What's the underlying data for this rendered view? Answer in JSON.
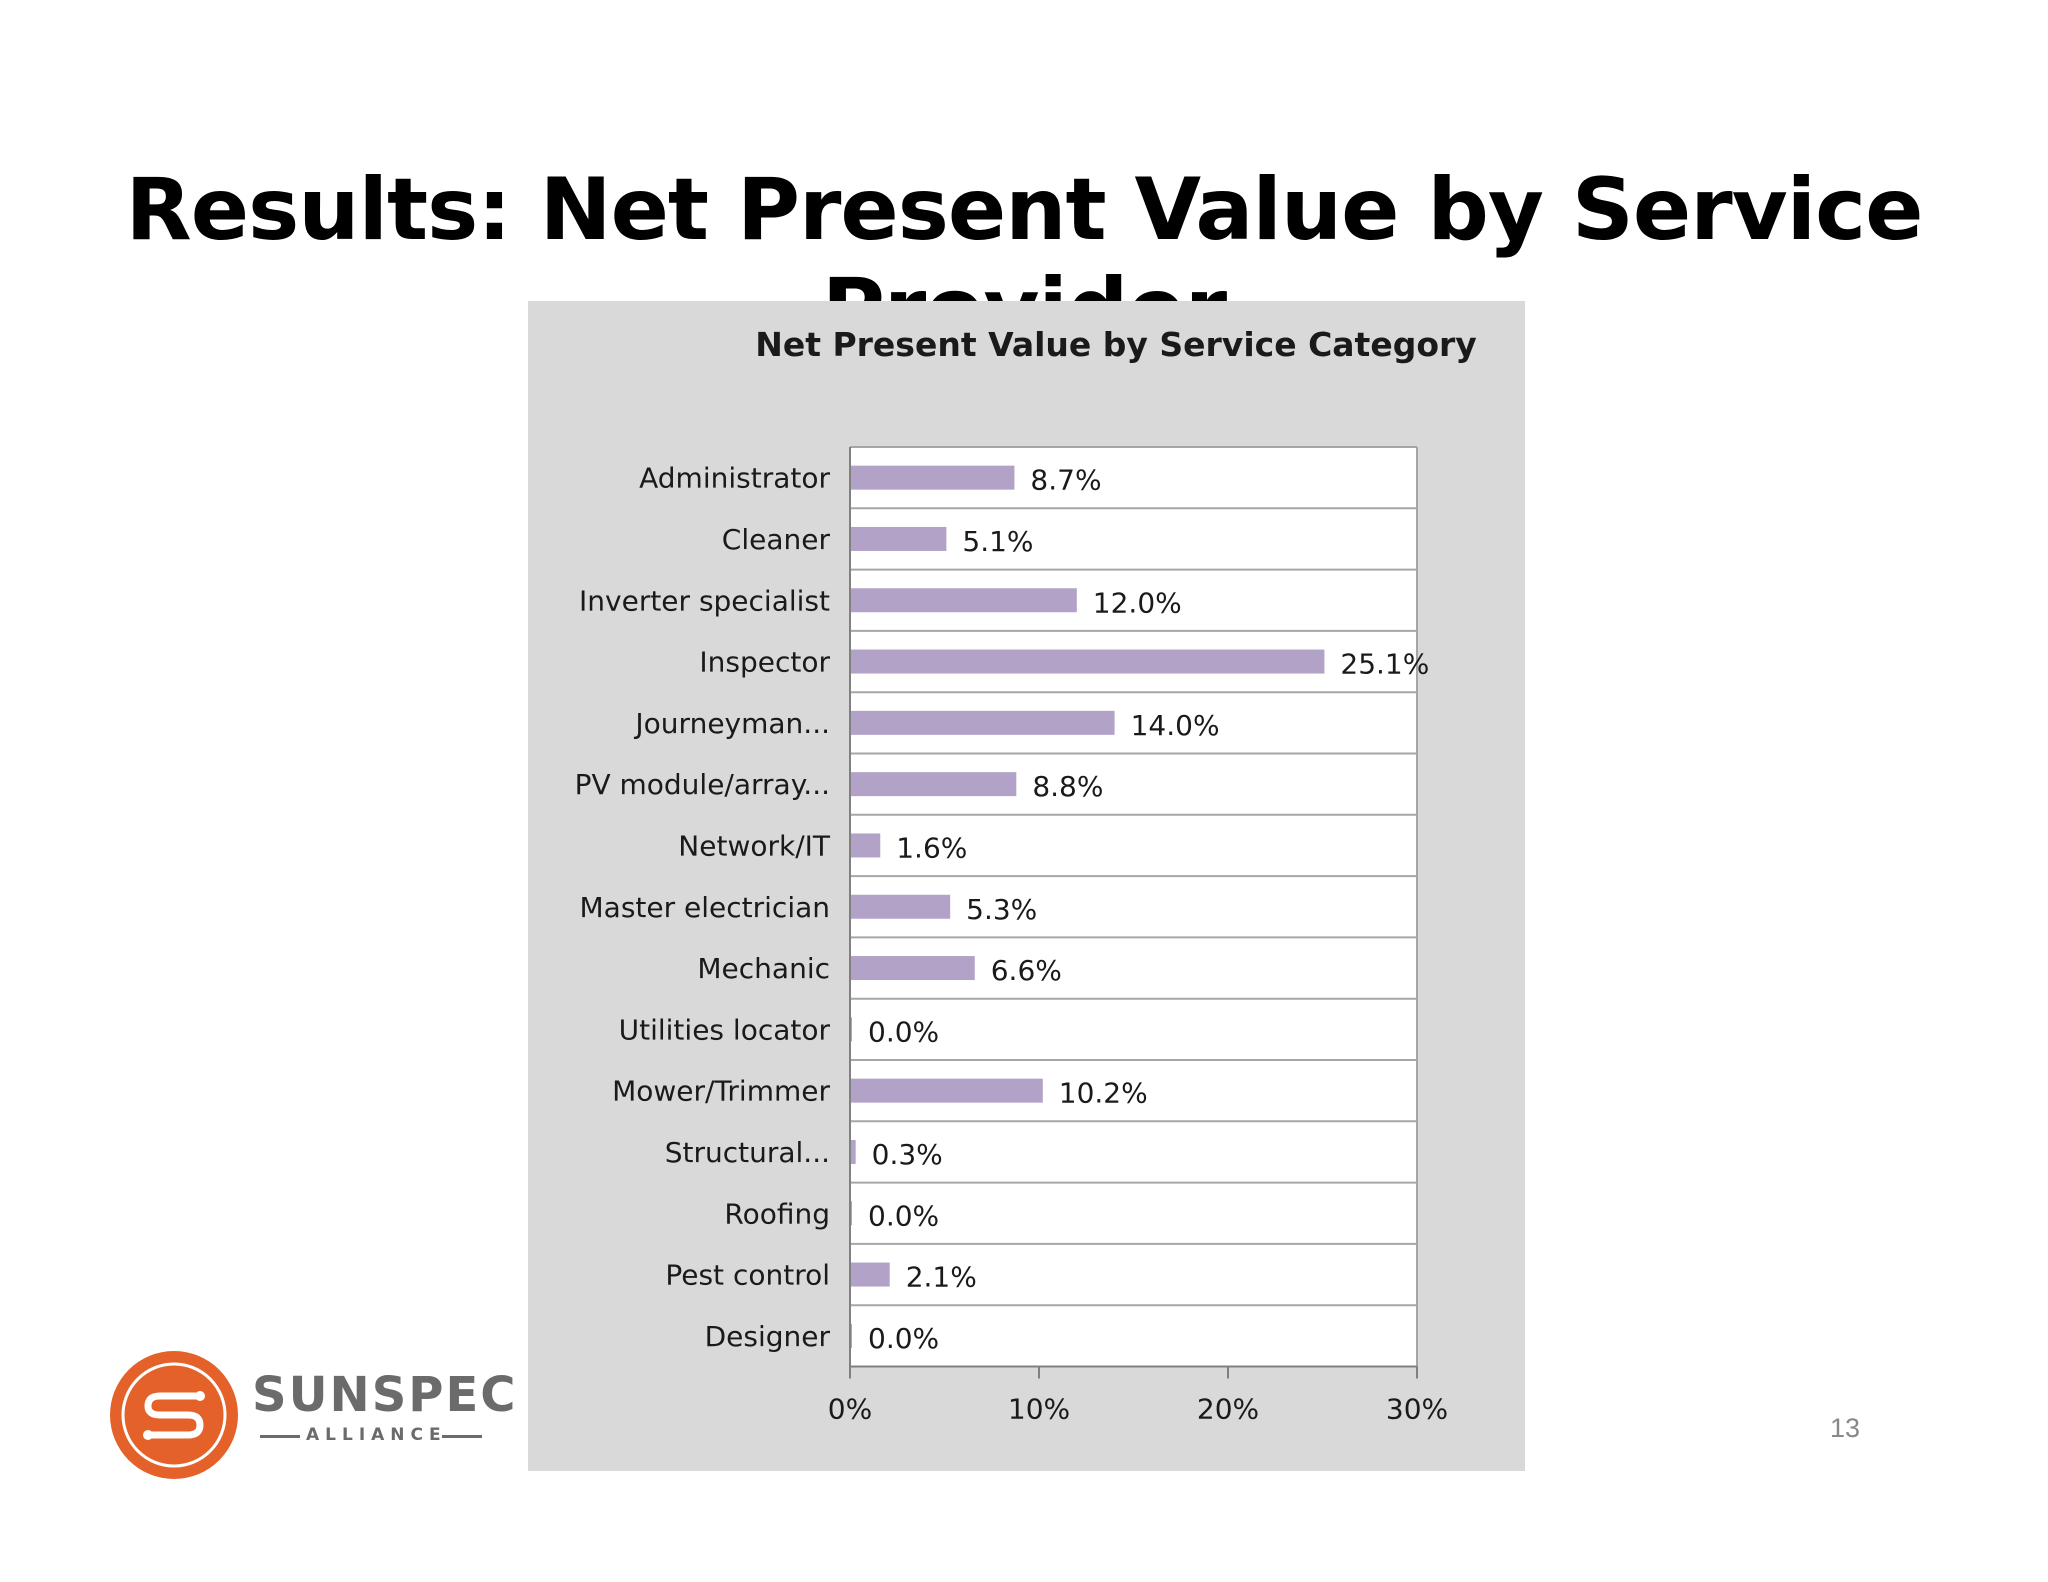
{
  "slide": {
    "title": "Results: Net Present Value by Service Provider",
    "page_number": "13"
  },
  "logo": {
    "name": "SUNSPEC",
    "subtitle": "ALLIANCE",
    "color": "#e4622a"
  },
  "chart_data": {
    "type": "bar",
    "orientation": "horizontal",
    "title": "Net Present Value by Service Category",
    "categories": [
      "Administrator",
      "Cleaner",
      "Inverter specialist",
      "Inspector",
      "Journeyman...",
      "PV module/array...",
      "Network/IT",
      "Master electrician",
      "Mechanic",
      "Utilities locator",
      "Mower/Trimmer",
      "Structural...",
      "Roofing",
      "Pest control",
      "Designer"
    ],
    "values": [
      8.7,
      5.1,
      12.0,
      25.1,
      14.0,
      8.8,
      1.6,
      5.3,
      6.6,
      0.0,
      10.2,
      0.3,
      0.0,
      2.1,
      0.0
    ],
    "data_labels": [
      "8.7%",
      "5.1%",
      "12.0%",
      "25.1%",
      "14.0%",
      "8.8%",
      "1.6%",
      "5.3%",
      "6.6%",
      "0.0%",
      "10.2%",
      "0.3%",
      "0.0%",
      "2.1%",
      "0.0%"
    ],
    "xlim": [
      0,
      30
    ],
    "x_ticks": [
      "0%",
      "10%",
      "20%",
      "30%"
    ],
    "bar_color": "#b3a2c7",
    "plot_background": "#ffffff",
    "panel_background": "#d9d9d9",
    "grid": "horizontal",
    "legend": "none"
  }
}
